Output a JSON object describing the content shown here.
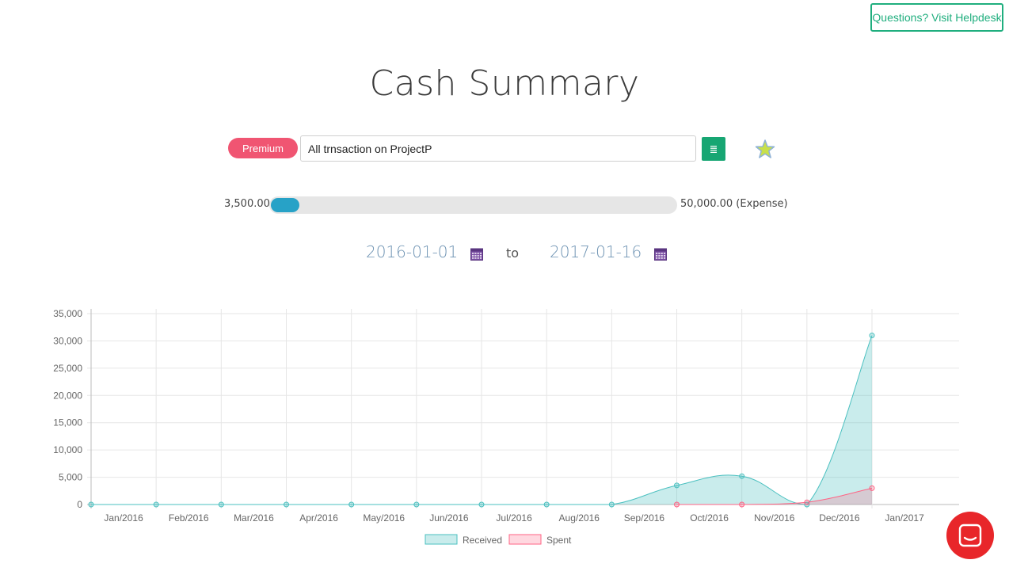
{
  "helpdesk": {
    "label": "Questions? Visit Helpdesk"
  },
  "page": {
    "title": "Cash Summary"
  },
  "filter": {
    "badge": "Premium",
    "search_value": "All trnsaction on ProjectP"
  },
  "icons": {
    "list": "list-icon",
    "favorite": "star-icon",
    "calendar": "calendar-icon",
    "chat": "chat-icon"
  },
  "range": {
    "min_label": "3,500.00",
    "max_label": "50,000.00 (Expense)",
    "fill_fraction": 0.07
  },
  "dates": {
    "from": "2016-01-01",
    "separator": "to",
    "to": "2017-01-16"
  },
  "colors": {
    "accent_green": "#1fae7e",
    "premium_pink": "#f05572",
    "slider_blue": "#27a2c7",
    "received": "#4bc0c0",
    "spent": "#ff6384",
    "chat_red": "#e8262a"
  },
  "chart_data": {
    "type": "area",
    "x_labels": [
      "Jan/2016",
      "Feb/2016",
      "Mar/2016",
      "Apr/2016",
      "May/2016",
      "Jun/2016",
      "Jul/2016",
      "Aug/2016",
      "Sep/2016",
      "Oct/2016",
      "Nov/2016",
      "Dec/2016",
      "Jan/2017"
    ],
    "y_ticks": [
      "0",
      "5,000",
      "10,000",
      "15,000",
      "20,000",
      "25,000",
      "30,000",
      "35,000"
    ],
    "ylim": [
      0,
      35000
    ],
    "grid": true,
    "legend": "bottom",
    "series": [
      {
        "name": "Received",
        "color": "#4bc0c0",
        "values": [
          0,
          0,
          0,
          0,
          0,
          0,
          0,
          0,
          0,
          3500,
          5200,
          0,
          31000
        ]
      },
      {
        "name": "Spent",
        "color": "#ff6384",
        "values": [
          null,
          null,
          null,
          null,
          null,
          null,
          null,
          null,
          null,
          0,
          0,
          400,
          3000
        ]
      }
    ]
  }
}
